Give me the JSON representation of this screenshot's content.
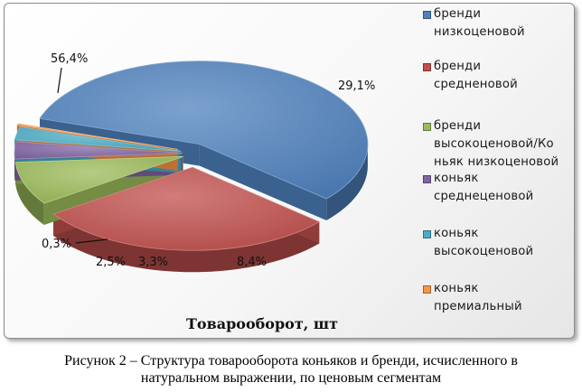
{
  "chart_data": {
    "type": "pie",
    "title": "Товарооборот, шт",
    "legend_position": "right",
    "slices": [
      {
        "name": "бренди\nнизкоценовой",
        "value": 56.4,
        "label": "56,4%",
        "color": "#4f81bd"
      },
      {
        "name": "бренди\nсредненовой",
        "value": 29.1,
        "label": "29,1%",
        "color": "#c0504d"
      },
      {
        "name": "бренди\nвысокоценовой/Ко\nньяк низкоценовой",
        "value": 8.4,
        "label": "8,4%",
        "color": "#9bbb59"
      },
      {
        "name": "коньяк\nсреднеценовой",
        "value": 3.3,
        "label": "3,3%",
        "color": "#8064a2"
      },
      {
        "name": "коньяк\nвысокоценовой",
        "value": 2.5,
        "label": "2,5%",
        "color": "#4bacc6"
      },
      {
        "name": "коньяк\nпремиальный",
        "value": 0.3,
        "label": "0,3%",
        "color": "#f79646"
      }
    ]
  },
  "caption": "Рисунок 2 – Структура товарооборота коньяков и бренди, исчисленного в\nнатуральном выражении, по ценовым сегментам"
}
